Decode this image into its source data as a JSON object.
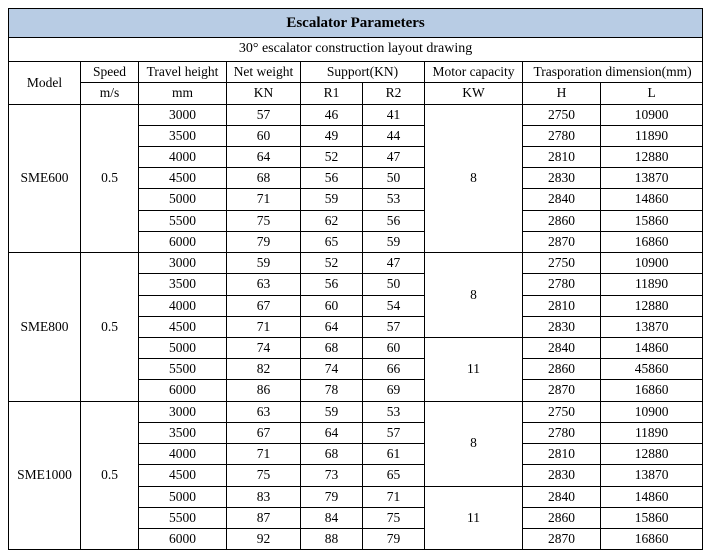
{
  "title": "Escalator Parameters",
  "subtitle": "30° escalator construction layout drawing",
  "header": {
    "model": "Model",
    "speed": "Speed",
    "speed_unit": "m/s",
    "travel_height": "Travel height",
    "travel_height_unit": "mm",
    "net_weight": "Net weight",
    "net_weight_unit": "KN",
    "support": "Support(KN)",
    "r1": "R1",
    "r2": "R2",
    "motor": "Motor capacity",
    "motor_unit": "KW",
    "trasp": "Trasporation dimension(mm)",
    "h": "H",
    "l": "L"
  },
  "groups": [
    {
      "model": "SME600",
      "speed": "0.5",
      "motor_spans": [
        {
          "value": "8",
          "span": 7
        }
      ],
      "rows": [
        {
          "th": "3000",
          "nw": "57",
          "r1": "46",
          "r2": "41",
          "h": "2750",
          "l": "10900"
        },
        {
          "th": "3500",
          "nw": "60",
          "r1": "49",
          "r2": "44",
          "h": "2780",
          "l": "11890"
        },
        {
          "th": "4000",
          "nw": "64",
          "r1": "52",
          "r2": "47",
          "h": "2810",
          "l": "12880"
        },
        {
          "th": "4500",
          "nw": "68",
          "r1": "56",
          "r2": "50",
          "h": "2830",
          "l": "13870"
        },
        {
          "th": "5000",
          "nw": "71",
          "r1": "59",
          "r2": "53",
          "h": "2840",
          "l": "14860"
        },
        {
          "th": "5500",
          "nw": "75",
          "r1": "62",
          "r2": "56",
          "h": "2860",
          "l": "15860"
        },
        {
          "th": "6000",
          "nw": "79",
          "r1": "65",
          "r2": "59",
          "h": "2870",
          "l": "16860"
        }
      ]
    },
    {
      "model": "SME800",
      "speed": "0.5",
      "motor_spans": [
        {
          "value": "8",
          "span": 4
        },
        {
          "value": "11",
          "span": 3
        }
      ],
      "rows": [
        {
          "th": "3000",
          "nw": "59",
          "r1": "52",
          "r2": "47",
          "h": "2750",
          "l": "10900"
        },
        {
          "th": "3500",
          "nw": "63",
          "r1": "56",
          "r2": "50",
          "h": "2780",
          "l": "11890"
        },
        {
          "th": "4000",
          "nw": "67",
          "r1": "60",
          "r2": "54",
          "h": "2810",
          "l": "12880"
        },
        {
          "th": "4500",
          "nw": "71",
          "r1": "64",
          "r2": "57",
          "h": "2830",
          "l": "13870"
        },
        {
          "th": "5000",
          "nw": "74",
          "r1": "68",
          "r2": "60",
          "h": "2840",
          "l": "14860"
        },
        {
          "th": "5500",
          "nw": "82",
          "r1": "74",
          "r2": "66",
          "h": "2860",
          "l": "45860"
        },
        {
          "th": "6000",
          "nw": "86",
          "r1": "78",
          "r2": "69",
          "h": "2870",
          "l": "16860"
        }
      ]
    },
    {
      "model": "SME1000",
      "speed": "0.5",
      "motor_spans": [
        {
          "value": "8",
          "span": 4
        },
        {
          "value": "11",
          "span": 3
        }
      ],
      "rows": [
        {
          "th": "3000",
          "nw": "63",
          "r1": "59",
          "r2": "53",
          "h": "2750",
          "l": "10900"
        },
        {
          "th": "3500",
          "nw": "67",
          "r1": "64",
          "r2": "57",
          "h": "2780",
          "l": "11890"
        },
        {
          "th": "4000",
          "nw": "71",
          "r1": "68",
          "r2": "61",
          "h": "2810",
          "l": "12880"
        },
        {
          "th": "4500",
          "nw": "75",
          "r1": "73",
          "r2": "65",
          "h": "2830",
          "l": "13870"
        },
        {
          "th": "5000",
          "nw": "83",
          "r1": "79",
          "r2": "71",
          "h": "2840",
          "l": "14860"
        },
        {
          "th": "5500",
          "nw": "87",
          "r1": "84",
          "r2": "75",
          "h": "2860",
          "l": "15860"
        },
        {
          "th": "6000",
          "nw": "92",
          "r1": "88",
          "r2": "79",
          "h": "2870",
          "l": "16860"
        }
      ]
    }
  ]
}
